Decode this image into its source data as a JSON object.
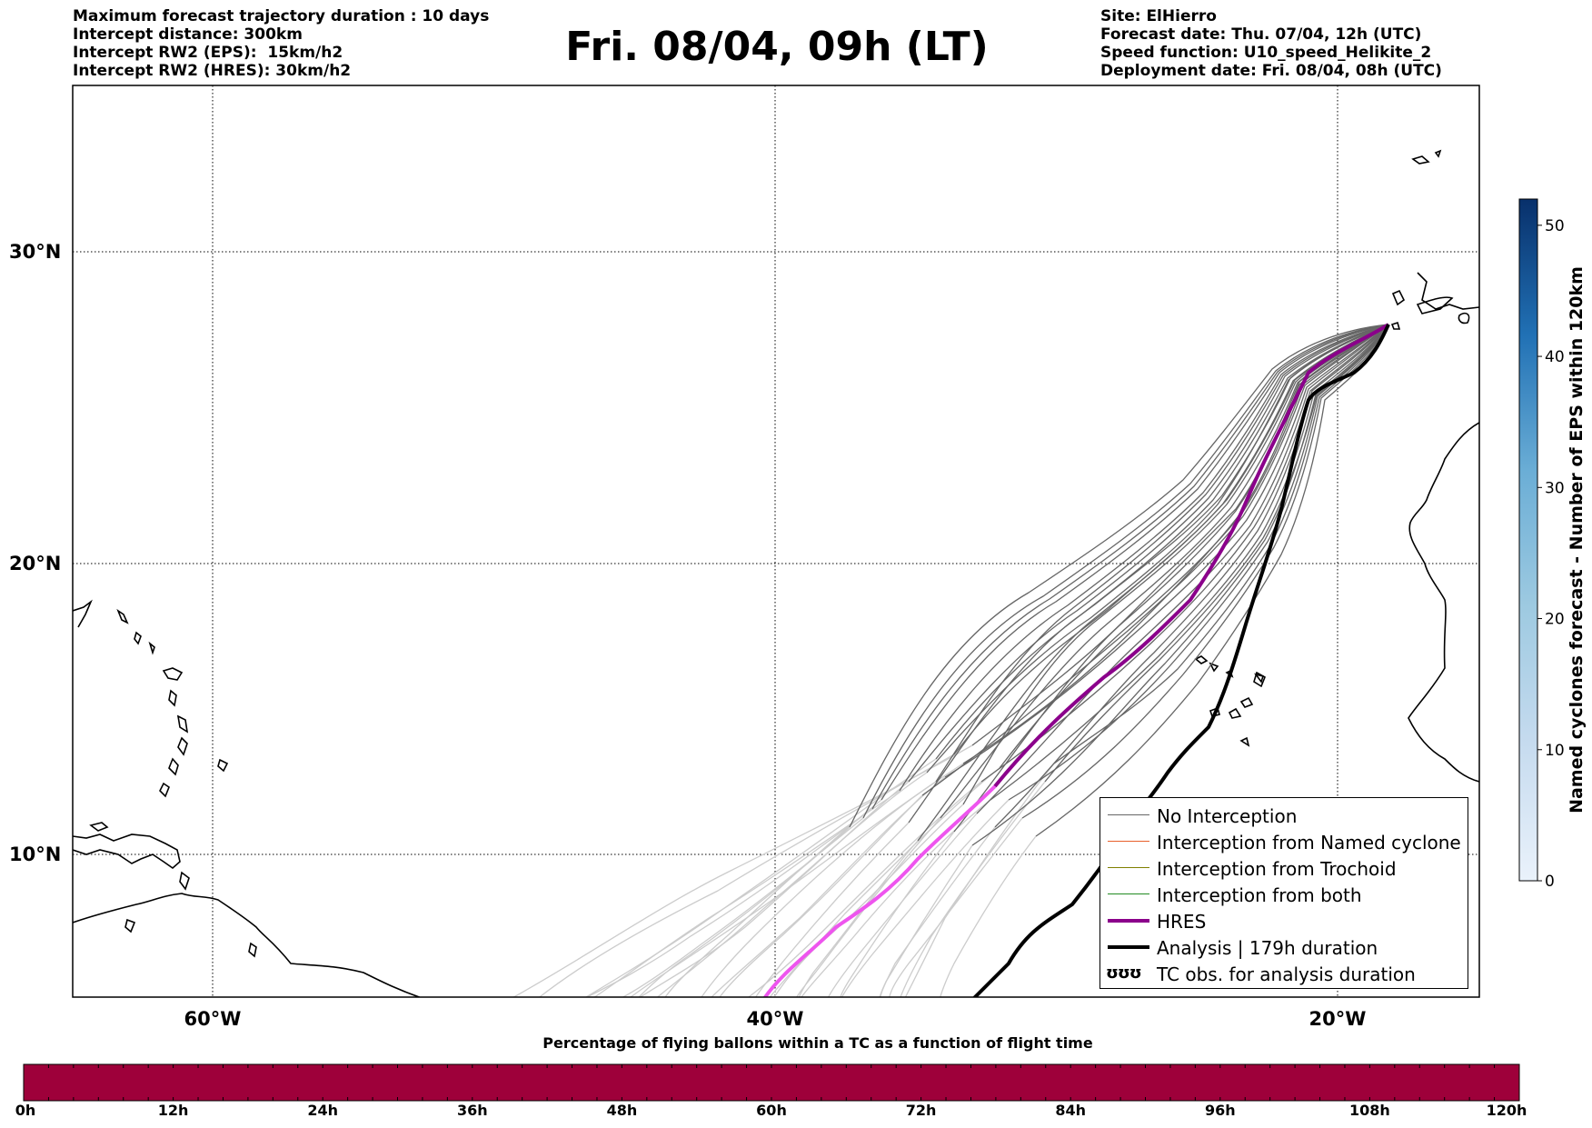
{
  "header": {
    "left_lines": [
      "Maximum forecast trajectory duration : 10 days",
      "Intercept distance: 300km",
      "Intercept RW2 (EPS):  15km/h2",
      "Intercept RW2 (HRES): 30km/h2"
    ],
    "title": "Fri. 08/04, 09h (LT)",
    "right_lines": [
      "Site: ElHierro",
      "Forecast date: Thu. 07/04, 12h (UTC)",
      "Speed function: U10_speed_Helikite_2",
      "Deployment date: Fri. 08/04, 08h (UTC)"
    ]
  },
  "map": {
    "lat_labels": [
      "30°N",
      "20°N",
      "10°N"
    ],
    "lon_labels": [
      "60°W",
      "40°W",
      "20°W"
    ],
    "colors": {
      "no_interception": "#666666",
      "eps_future": "#cccccc",
      "hres": "#8b008b",
      "hres_future": "#ee55ee",
      "analysis": "#000000",
      "named_cyclone": "#e8602c",
      "trochoid": "#808000",
      "both": "#228b22"
    }
  },
  "legend": {
    "items": [
      {
        "label": "No Interception",
        "color": "#666666"
      },
      {
        "label": "Interception from Named cyclone",
        "color": "#e8602c"
      },
      {
        "label": "Interception from Trochoid",
        "color": "#808000"
      },
      {
        "label": "Interception from both",
        "color": "#228b22"
      },
      {
        "label": "HRES",
        "color": "#8b008b"
      },
      {
        "label": "Analysis | 179h duration",
        "color": "#000000"
      },
      {
        "label": "TC obs. for analysis duration",
        "symbol": "ʊʊʊ"
      }
    ]
  },
  "right_colorbar": {
    "title": "Named cyclones forecast - Number of EPS within 120km",
    "ticks": [
      "0",
      "10",
      "20",
      "30",
      "40",
      "50"
    ],
    "colors": [
      "#e9f1fa",
      "#08306b"
    ]
  },
  "bottom_colorbar": {
    "title": "Percentage of flying ballons within a TC as a function of flight time",
    "ticks": [
      "0h",
      "12h",
      "24h",
      "36h",
      "48h",
      "60h",
      "72h",
      "84h",
      "96h",
      "108h",
      "120h"
    ],
    "color": "#9e003a"
  }
}
